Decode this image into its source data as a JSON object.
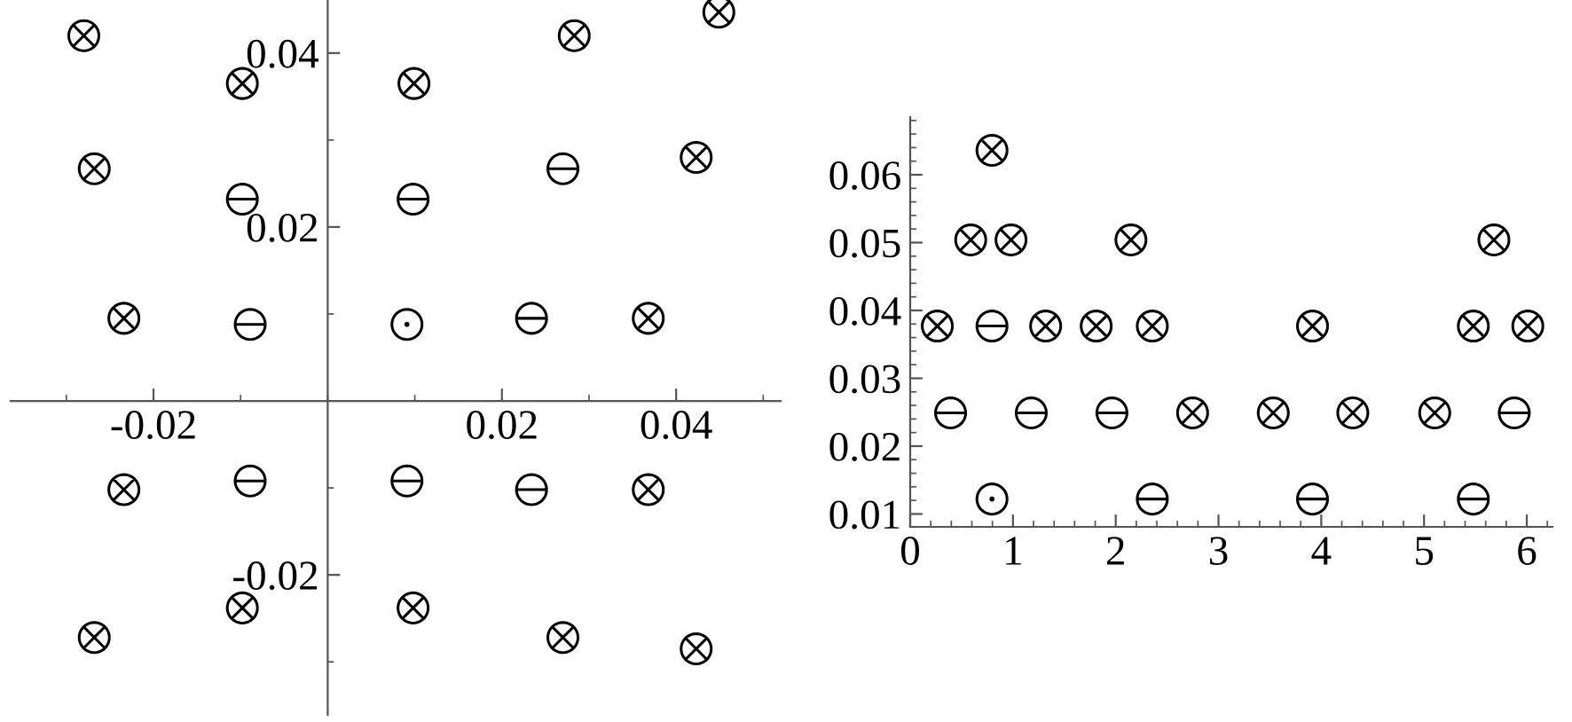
{
  "chart_data": [
    {
      "type": "scatter",
      "xlim": [
        -0.0364,
        0.052
      ],
      "ylim": [
        -0.0361,
        0.0461
      ],
      "xticks": [
        -0.02,
        0.02,
        0.04
      ],
      "yticks": [
        -0.02,
        0.02,
        0.04
      ],
      "grid": false,
      "legend": false,
      "series": [
        {
          "color": "#000000",
          "marker": "cross",
          "x": [
            -0.028,
            -0.0098,
            0.0099,
            0.0283,
            0.0449,
            -0.0268,
            0.0423,
            -0.0234,
            0.0368,
            -0.0234,
            0.0368,
            -0.0268,
            -0.0098,
            0.0098,
            0.027,
            0.0423
          ],
          "values": [
            0.042,
            0.0365,
            0.0365,
            0.042,
            0.0447,
            0.0267,
            0.028,
            0.0095,
            0.0095,
            -0.0102,
            -0.0102,
            -0.0272,
            -0.0238,
            -0.0238,
            -0.0272,
            -0.0285
          ]
        },
        {
          "color": "#000000",
          "x": [
            -0.0098,
            0.0098,
            0.027,
            -0.0089,
            0.0234,
            -0.0089,
            0.0091,
            0.0234
          ],
          "values": [
            0.0232,
            0.0232,
            0.0267,
            0.0088,
            0.0095,
            -0.0092,
            -0.0092,
            -0.0102
          ]
        },
        {
          "color": "#000000",
          "marker": "circle",
          "x": [
            0.0091
          ],
          "values": [
            0.0088
          ]
        }
      ]
    },
    {
      "type": "scatter",
      "xlim": [
        0,
        6.25
      ],
      "ylim": [
        0.0081,
        0.0685
      ],
      "xticks": [
        0,
        1,
        2,
        3,
        4,
        5,
        6
      ],
      "yticks": [
        0.01,
        0.02,
        0.03,
        0.04,
        0.05,
        0.06
      ],
      "grid": false,
      "legend": false,
      "series": [
        {
          "color": "#000000",
          "marker": "cross",
          "x": [
            0.264,
            1.318,
            1.81,
            2.356,
            3.915,
            5.48,
            6.01,
            0.796,
            0.589,
            0.981,
            2.148,
            5.68,
            2.748,
            3.533,
            4.307,
            5.104
          ],
          "values": [
            0.0377,
            0.0377,
            0.0377,
            0.0377,
            0.0377,
            0.0377,
            0.0377,
            0.0636,
            0.0504,
            0.0504,
            0.0504,
            0.0504,
            0.0249,
            0.0249,
            0.0249,
            0.0249
          ]
        },
        {
          "color": "#000000",
          "x": [
            0.796,
            0.393,
            1.178,
            1.963,
            5.878,
            2.356,
            3.915,
            5.48
          ],
          "values": [
            0.0377,
            0.0249,
            0.0249,
            0.0249,
            0.0249,
            0.0122,
            0.0122,
            0.0122
          ]
        },
        {
          "color": "#000000",
          "marker": "circle",
          "x": [
            0.796
          ],
          "values": [
            0.0122
          ]
        }
      ]
    }
  ]
}
